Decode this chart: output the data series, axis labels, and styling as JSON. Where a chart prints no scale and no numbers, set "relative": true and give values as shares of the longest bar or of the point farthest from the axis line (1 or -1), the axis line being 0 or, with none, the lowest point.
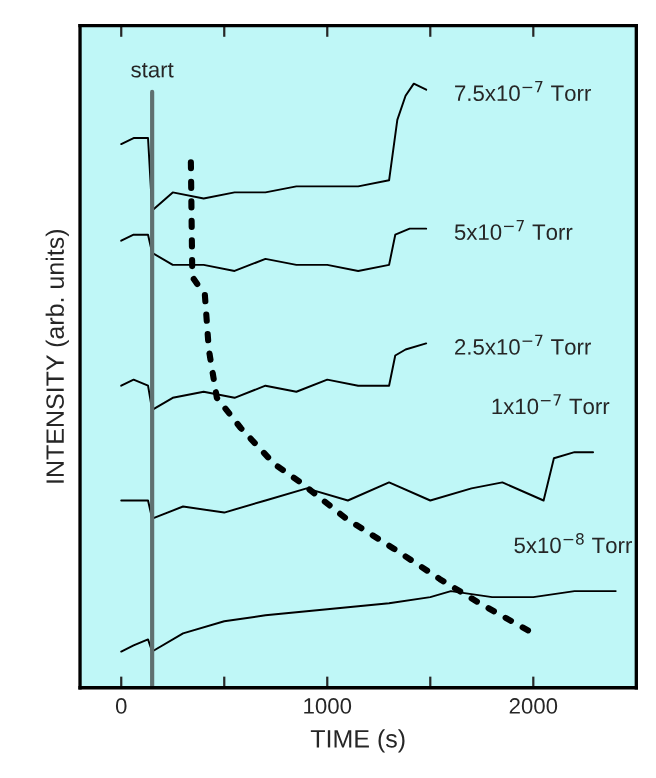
{
  "chart_data": {
    "type": "line",
    "relative": true,
    "xlabel": "TIME (s)",
    "ylabel": "INTENSITY (arb. units)",
    "xlim": [
      -200,
      2500
    ],
    "xticks": [
      0,
      {
        "value": 500,
        "label": null
      },
      1000,
      {
        "value": 1500,
        "label": null
      },
      2000
    ],
    "grid": false,
    "marker": "none",
    "series": [
      {
        "color": "#000000",
        "x": [
          0,
          60,
          130,
          150,
          250,
          400,
          550,
          700,
          850,
          1000,
          1150,
          1300,
          1340,
          1380,
          1420,
          1480
        ],
        "values": [
          0.9,
          0.91,
          0.91,
          0.79,
          0.82,
          0.81,
          0.82,
          0.82,
          0.83,
          0.83,
          0.83,
          0.84,
          0.94,
          0.98,
          1.0,
          0.99
        ]
      },
      {
        "color": "#000000",
        "x": [
          0,
          60,
          130,
          150,
          250,
          400,
          550,
          700,
          850,
          1000,
          1150,
          1300,
          1330,
          1400,
          1480
        ],
        "values": [
          0.74,
          0.75,
          0.75,
          0.72,
          0.7,
          0.7,
          0.69,
          0.71,
          0.7,
          0.7,
          0.69,
          0.7,
          0.75,
          0.76,
          0.76
        ]
      },
      {
        "color": "#000000",
        "x": [
          0,
          60,
          130,
          150,
          250,
          400,
          550,
          700,
          850,
          1000,
          1150,
          1300,
          1330,
          1380,
          1480
        ],
        "values": [
          0.5,
          0.51,
          0.5,
          0.46,
          0.48,
          0.49,
          0.48,
          0.5,
          0.49,
          0.51,
          0.5,
          0.5,
          0.55,
          0.56,
          0.57
        ]
      },
      {
        "color": "#000000",
        "x": [
          0,
          60,
          130,
          150,
          300,
          500,
          700,
          900,
          1100,
          1300,
          1500,
          1700,
          1850,
          2050,
          2100,
          2200,
          2290
        ],
        "values": [
          0.31,
          0.31,
          0.31,
          0.28,
          0.3,
          0.29,
          0.31,
          0.33,
          0.31,
          0.34,
          0.31,
          0.33,
          0.34,
          0.31,
          0.38,
          0.39,
          0.39
        ]
      },
      {
        "color": "#000000",
        "x": [
          0,
          60,
          130,
          150,
          300,
          500,
          700,
          1000,
          1300,
          1500,
          1600,
          1800,
          2000,
          2200,
          2400
        ],
        "values": [
          0.06,
          0.07,
          0.08,
          0.06,
          0.09,
          0.11,
          0.12,
          0.13,
          0.14,
          0.15,
          0.16,
          0.15,
          0.15,
          0.16,
          0.16
        ]
      },
      {
        "color": "#000000",
        "line_style": "dotted",
        "x": [
          338,
          345,
          406,
          425,
          464,
          580,
          744,
          870,
          1092,
          1324,
          1546,
          1739,
          2000
        ],
        "values": [
          0.87,
          0.68,
          0.65,
          0.56,
          0.48,
          0.43,
          0.37,
          0.34,
          0.28,
          0.23,
          0.18,
          0.14,
          0.09
        ]
      }
    ],
    "ref_lines": [
      {
        "axis": "x",
        "value": 150,
        "label": "start",
        "color": "#5f7070"
      }
    ],
    "annotations": [
      "7.5x10$^{−7}$ Torr",
      "5x10$^{−7}$ Torr",
      "2.5x10$^{−7}$ Torr",
      "1x10$^{−7}$ Torr",
      "5x10$^{−8}$ Torr"
    ]
  }
}
